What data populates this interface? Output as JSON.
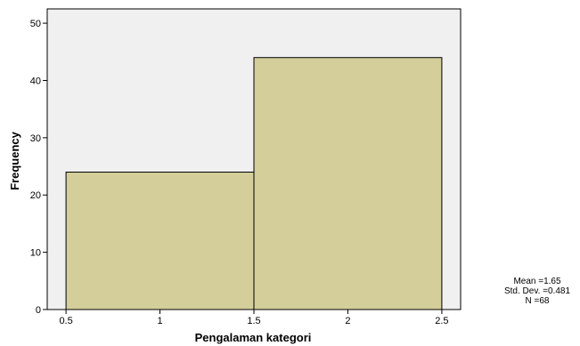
{
  "chart_data": {
    "type": "bar",
    "subtype": "histogram",
    "bins": [
      {
        "x0": 0.5,
        "x1": 1.5,
        "value": 24
      },
      {
        "x0": 1.5,
        "x1": 2.5,
        "value": 44
      }
    ],
    "xlabel": "Pengalaman kategori",
    "ylabel": "Frequency",
    "xlim": [
      0.4,
      2.6
    ],
    "ylim": [
      0,
      52.5
    ],
    "xticks": [
      0.5,
      1,
      1.5,
      2,
      2.5
    ],
    "xtick_labels": [
      "0.5",
      "1",
      "1.5",
      "2",
      "2.5"
    ],
    "yticks": [
      0,
      10,
      20,
      30,
      40,
      50
    ],
    "ytick_labels": [
      "0",
      "10",
      "20",
      "30",
      "40",
      "50"
    ],
    "grid": false,
    "bar_color": "#d3ce9a",
    "plot_background": "#f0f0f0"
  },
  "stats": {
    "mean": "Mean =1.65",
    "std_dev": "Std. Dev. =0.481",
    "n": "N =68"
  }
}
